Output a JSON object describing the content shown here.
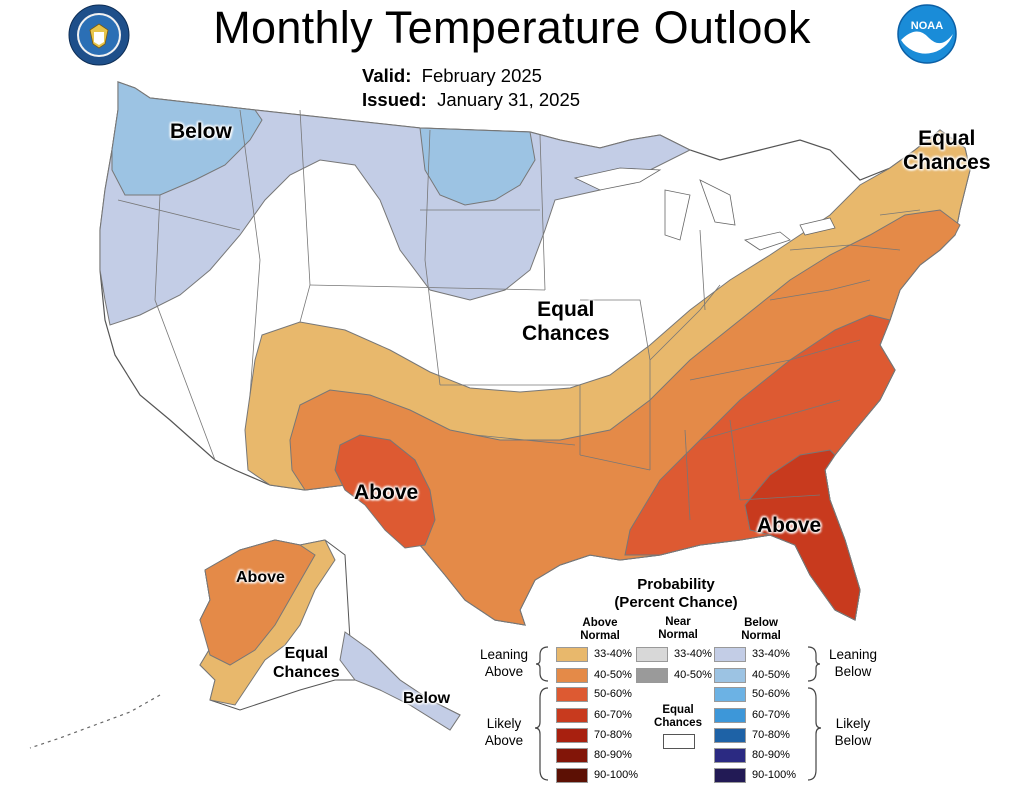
{
  "title": "Monthly Temperature Outlook",
  "valid_label": "Valid:",
  "valid_value": "February 2025",
  "issued_label": "Issued:",
  "issued_value": "January 31, 2025",
  "colors": {
    "below_33_40": "#c3cde6",
    "below_40_50": "#9cc3e3",
    "above_33_40": "#e8b86c",
    "above_40_50": "#e48a48",
    "above_50_60": "#dd5a32",
    "above_60_70": "#c83a1e",
    "equal": "#ffffff",
    "boundary": "#777777"
  },
  "map_labels": {
    "below_nw": "Below",
    "equal_ne_1": "Equal",
    "equal_ne_2": "Chances",
    "equal_center_1": "Equal",
    "equal_center_2": "Chances",
    "above_tx": "Above",
    "above_se": "Above",
    "ak_above": "Above",
    "ak_equal_1": "Equal",
    "ak_equal_2": "Chances",
    "ak_below": "Below"
  },
  "legend": {
    "title_1": "Probability",
    "title_2": "(Percent Chance)",
    "col_above_1": "Above",
    "col_above_2": "Normal",
    "col_near_1": "Near",
    "col_near_2": "Normal",
    "col_below_1": "Below",
    "col_below_2": "Normal",
    "leaning_above_1": "Leaning",
    "leaning_above_2": "Above",
    "leaning_below_1": "Leaning",
    "leaning_below_2": "Below",
    "likely_above_1": "Likely",
    "likely_above_2": "Above",
    "likely_below_1": "Likely",
    "likely_below_2": "Below",
    "equal_1": "Equal",
    "equal_2": "Chances",
    "above_rows": [
      {
        "label": "33-40%",
        "color": "#e8b86c"
      },
      {
        "label": "40-50%",
        "color": "#e48a48"
      },
      {
        "label": "50-60%",
        "color": "#dd5a32"
      },
      {
        "label": "60-70%",
        "color": "#c83a1e"
      },
      {
        "label": "70-80%",
        "color": "#a8200f"
      },
      {
        "label": "80-90%",
        "color": "#821508"
      },
      {
        "label": "90-100%",
        "color": "#5c1004"
      }
    ],
    "near_rows": [
      {
        "label": "33-40%",
        "color": "#d8d8d8"
      },
      {
        "label": "40-50%",
        "color": "#9a9a9a"
      }
    ],
    "below_rows": [
      {
        "label": "33-40%",
        "color": "#c3cde6"
      },
      {
        "label": "40-50%",
        "color": "#9cc3e3"
      },
      {
        "label": "50-60%",
        "color": "#6cb2e4"
      },
      {
        "label": "60-70%",
        "color": "#3d97d9"
      },
      {
        "label": "70-80%",
        "color": "#1e62a6"
      },
      {
        "label": "80-90%",
        "color": "#2b2a82"
      },
      {
        "label": "90-100%",
        "color": "#221a55"
      }
    ]
  },
  "logos": {
    "left": "department-of-commerce-seal",
    "right": "noaa-logo",
    "right_text": "NOAA"
  }
}
